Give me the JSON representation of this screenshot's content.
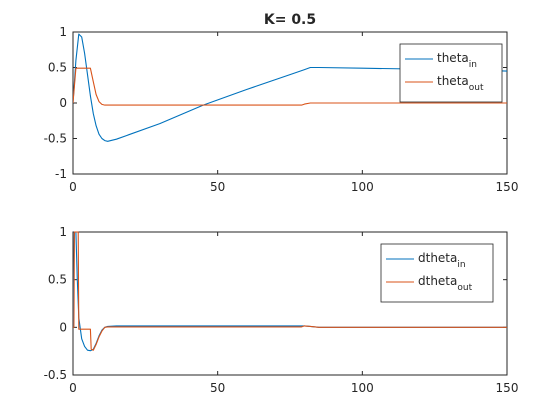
{
  "chart_data": [
    {
      "type": "line",
      "title": "K= 0.5",
      "xlabel": "",
      "ylabel": "",
      "xlim": [
        0,
        150
      ],
      "ylim": [
        -1,
        1
      ],
      "xticks": [
        0,
        50,
        100,
        150
      ],
      "yticks": [
        -1,
        -0.5,
        0,
        0.5,
        1
      ],
      "xtick_labels": [
        "0",
        "50",
        "100",
        "150"
      ],
      "ytick_labels": [
        "-1",
        "-0.5",
        "0",
        "0.5",
        "1"
      ],
      "grid": false,
      "legend_position": "top-right",
      "series": [
        {
          "name": "theta",
          "name_sub": "in",
          "color": "#0072BD",
          "points": [
            [
              0,
              0
            ],
            [
              1,
              0.6
            ],
            [
              2,
              0.97
            ],
            [
              3,
              0.93
            ],
            [
              4,
              0.7
            ],
            [
              5,
              0.4
            ],
            [
              6,
              0.1
            ],
            [
              7,
              -0.15
            ],
            [
              8,
              -0.32
            ],
            [
              9,
              -0.44
            ],
            [
              10,
              -0.5
            ],
            [
              11,
              -0.53
            ],
            [
              12,
              -0.54
            ],
            [
              15,
              -0.51
            ],
            [
              30,
              -0.29
            ],
            [
              45,
              -0.03
            ],
            [
              60,
              0.19
            ],
            [
              75,
              0.4
            ],
            [
              80,
              0.47
            ],
            [
              82,
              0.5
            ],
            [
              85,
              0.5
            ],
            [
              100,
              0.49
            ],
            [
              130,
              0.47
            ],
            [
              150,
              0.45
            ]
          ]
        },
        {
          "name": "theta",
          "name_sub": "out",
          "color": "#D95319",
          "points": [
            [
              0,
              0
            ],
            [
              1,
              0.49
            ],
            [
              6,
              0.49
            ],
            [
              7,
              0.3
            ],
            [
              8,
              0.12
            ],
            [
              9,
              0.02
            ],
            [
              10,
              -0.02
            ],
            [
              11,
              -0.03
            ],
            [
              79,
              -0.03
            ],
            [
              80,
              -0.015
            ],
            [
              82,
              0
            ],
            [
              150,
              0
            ]
          ]
        }
      ]
    },
    {
      "type": "line",
      "title": "",
      "xlabel": "",
      "ylabel": "",
      "xlim": [
        0,
        150
      ],
      "ylim": [
        -0.5,
        1
      ],
      "xticks": [
        0,
        50,
        100,
        150
      ],
      "yticks": [
        -0.5,
        0,
        0.5,
        1
      ],
      "xtick_labels": [
        "0",
        "50",
        "100",
        "150"
      ],
      "ytick_labels": [
        "-0.5",
        "0",
        "0.5",
        "1"
      ],
      "grid": false,
      "legend_position": "top-right",
      "series": [
        {
          "name": "dtheta",
          "name_sub": "in",
          "color": "#0072BD",
          "points": [
            [
              0,
              0
            ],
            [
              0.5,
              1
            ],
            [
              1,
              1
            ],
            [
              1.5,
              0.5
            ],
            [
              2,
              0.1
            ],
            [
              3,
              -0.12
            ],
            [
              4,
              -0.2
            ],
            [
              5,
              -0.24
            ],
            [
              6,
              -0.245
            ],
            [
              7,
              -0.23
            ],
            [
              8,
              -0.17
            ],
            [
              9,
              -0.09
            ],
            [
              10,
              -0.03
            ],
            [
              11,
              0
            ],
            [
              12,
              0.01
            ],
            [
              15,
              0.015
            ],
            [
              30,
              0.015
            ],
            [
              60,
              0.015
            ],
            [
              78,
              0.015
            ],
            [
              80,
              0.015
            ],
            [
              82,
              0.01
            ],
            [
              85,
              0
            ],
            [
              150,
              0
            ]
          ]
        },
        {
          "name": "dtheta",
          "name_sub": "out",
          "color": "#D95319",
          "points": [
            [
              0,
              0
            ],
            [
              0.3,
              0
            ],
            [
              0.5,
              1
            ],
            [
              1.8,
              1
            ],
            [
              2,
              -0.02
            ],
            [
              6,
              -0.02
            ],
            [
              6.3,
              -0.23
            ],
            [
              7,
              -0.24
            ],
            [
              8,
              -0.18
            ],
            [
              9,
              -0.1
            ],
            [
              10,
              -0.04
            ],
            [
              11,
              0
            ],
            [
              12,
              0.005
            ],
            [
              79,
              0.005
            ],
            [
              80,
              0.015
            ],
            [
              82,
              0.01
            ],
            [
              85,
              0
            ],
            [
              150,
              0
            ]
          ]
        }
      ]
    }
  ]
}
